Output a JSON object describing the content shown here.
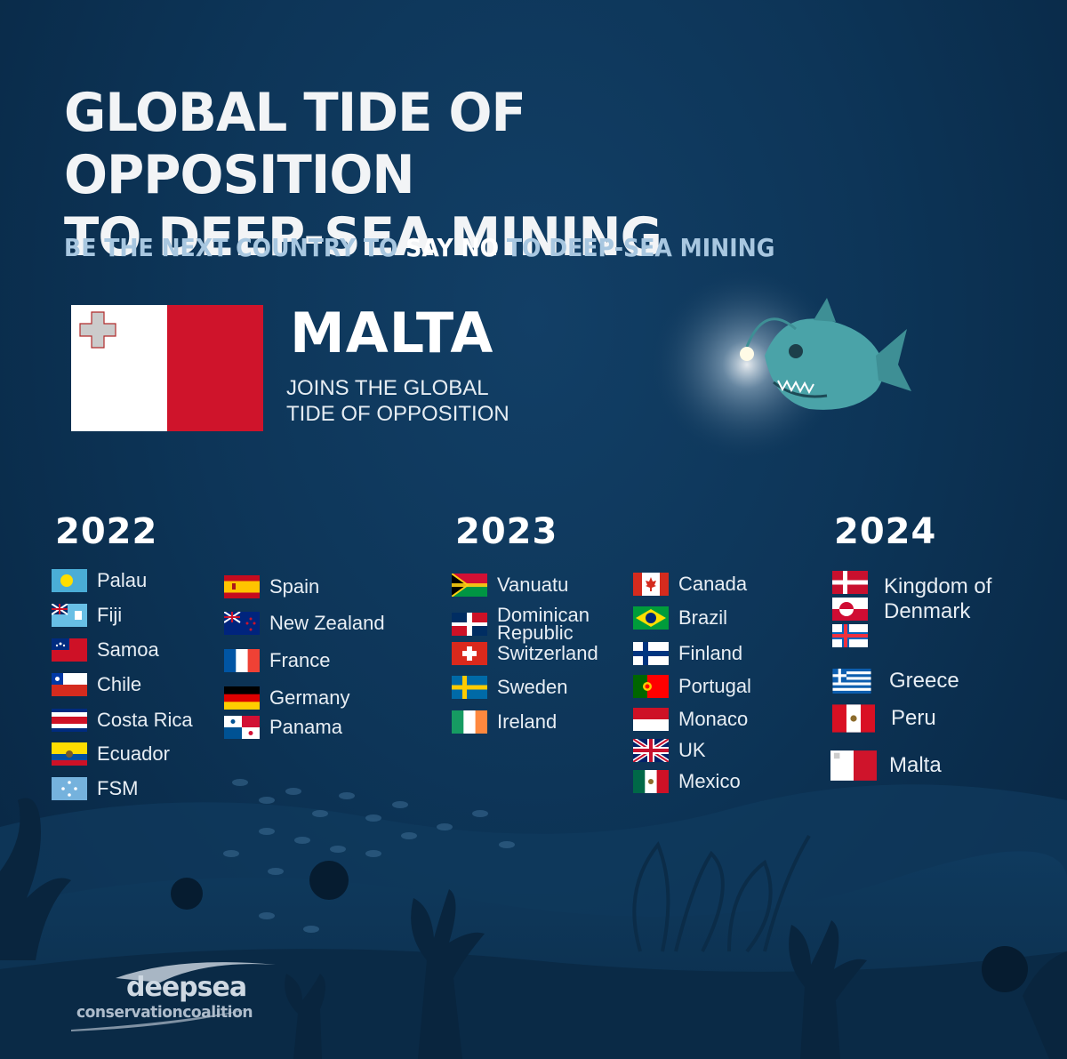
{
  "title_line1": "GLOBAL TIDE OF OPPOSITION",
  "title_line2": "TO DEEP-SEA MINING",
  "subtitle": {
    "part1": "BE THE NEXT COUNTRY TO ",
    "say": "SAY",
    "space": " ",
    "no": "NO",
    "part2": " TO DEEP-SEA MINING"
  },
  "featured": {
    "country": "MALTA",
    "line1": "JOINS THE GLOBAL",
    "line2": "TIDE OF OPPOSITION"
  },
  "years": {
    "y2022": "2022",
    "y2023": "2023",
    "y2024": "2024"
  },
  "countries_2022": [
    "Palau",
    "Fiji",
    "Samoa",
    "Chile",
    "Costa Rica",
    "Ecuador",
    "FSM",
    "Spain",
    "New Zealand",
    "France",
    "Germany",
    "Panama"
  ],
  "countries_2023": [
    "Vanuatu",
    "Dominican Republic",
    "Switzerland",
    "Sweden",
    "Ireland",
    "Canada",
    "Brazil",
    "Finland",
    "Portugal",
    "Monaco",
    "UK",
    "Mexico"
  ],
  "countries_2024": [
    "Kingdom of Denmark",
    "Greece",
    "Peru",
    "Malta"
  ],
  "logo": {
    "top": "deepsea",
    "bottom": "conservationcoalition"
  },
  "colors": {
    "background": "#0d3558",
    "subtitle": "#a8c7e0",
    "malta_red": "#cf142b"
  }
}
